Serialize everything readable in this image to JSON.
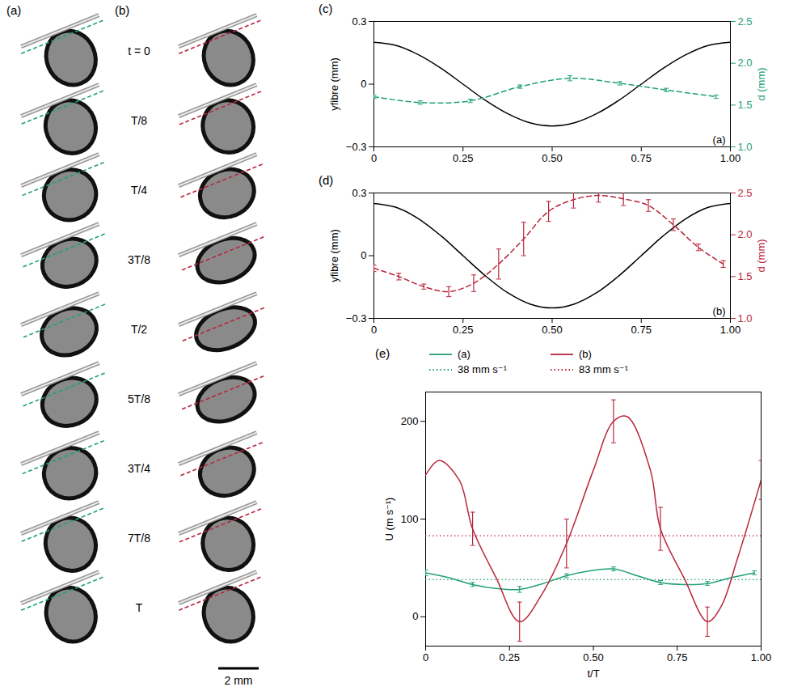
{
  "image_panels": {
    "labels": [
      "(a)",
      "(b)"
    ],
    "times": [
      "t = 0",
      "T/8",
      "T/4",
      "3T/8",
      "T/2",
      "5T/8",
      "3T/4",
      "7T/8",
      "T"
    ],
    "scale_bar": "2 mm"
  },
  "chart_data": [
    {
      "type": "line",
      "panel": "(c)",
      "annotations": [
        "(a)"
      ],
      "xlim": [
        0,
        1
      ],
      "xticks": [
        0,
        0.25,
        {
          "value": 0.5,
          "label": "0.50"
        },
        {
          "value": 0.75,
          "label": "0.75"
        },
        {
          "value": 1,
          "label": "1.00"
        }
      ],
      "ylim": [
        -0.3,
        0.3
      ],
      "yticks": [
        {
          "value": -0.3,
          "label": "−0.3"
        },
        0,
        0.3
      ],
      "ylabel": "yfibre (mm)",
      "y2lim": [
        1,
        2.5
      ],
      "y2ticks": [
        {
          "value": 1,
          "label": "1.0"
        },
        {
          "value": 1.5,
          "label": "1.5"
        },
        {
          "value": 2,
          "label": "2.0"
        },
        {
          "value": 2.5,
          "label": "2.5"
        }
      ],
      "y2label": "d (mm)",
      "series": [
        {
          "color": "#000000",
          "line_style": "solid",
          "x": [
            0,
            0.0625,
            0.125,
            0.1875,
            0.25,
            0.3125,
            0.375,
            0.4375,
            0.5,
            0.5625,
            0.625,
            0.6875,
            0.75,
            0.8125,
            0.875,
            0.9375,
            1
          ],
          "values": [
            0.2,
            0.185,
            0.141,
            0.077,
            0,
            -0.077,
            -0.141,
            -0.185,
            -0.2,
            -0.185,
            -0.141,
            -0.077,
            0,
            0.077,
            0.141,
            0.185,
            0.2
          ]
        },
        {
          "axis": "y2",
          "color": "#22a07a",
          "line_style": "dashed",
          "x": [
            0,
            0.13,
            0.27,
            0.41,
            0.55,
            0.69,
            0.82,
            0.96
          ],
          "values": [
            1.6,
            1.53,
            1.55,
            1.72,
            1.82,
            1.76,
            1.68,
            1.6
          ],
          "error": [
            0.02,
            0.02,
            0.02,
            0.02,
            0.03,
            0.02,
            0.02,
            0.02
          ]
        }
      ]
    },
    {
      "type": "line",
      "panel": "(d)",
      "annotations": [
        "(b)"
      ],
      "xlim": [
        0,
        1
      ],
      "xticks": [
        0,
        0.25,
        {
          "value": 0.5,
          "label": "0.50"
        },
        {
          "value": 0.75,
          "label": "0.75"
        },
        {
          "value": 1,
          "label": "1.00"
        }
      ],
      "ylim": [
        -0.3,
        0.3
      ],
      "yticks": [
        {
          "value": -0.3,
          "label": "−0.3"
        },
        0,
        0.3
      ],
      "ylabel": "yfibre (mm)",
      "y2lim": [
        1,
        2.5
      ],
      "y2ticks": [
        {
          "value": 1,
          "label": "1.0"
        },
        {
          "value": 1.5,
          "label": "1.5"
        },
        {
          "value": 2,
          "label": "2.0"
        },
        {
          "value": 2.5,
          "label": "2.5"
        }
      ],
      "y2label": "d (mm)",
      "series": [
        {
          "color": "#000000",
          "line_style": "solid",
          "x": [
            0,
            0.0625,
            0.125,
            0.1875,
            0.25,
            0.3125,
            0.375,
            0.4375,
            0.5,
            0.5625,
            0.625,
            0.6875,
            0.75,
            0.8125,
            0.875,
            0.9375,
            1
          ],
          "values": [
            0.25,
            0.231,
            0.177,
            0.096,
            0,
            -0.096,
            -0.177,
            -0.231,
            -0.25,
            -0.231,
            -0.177,
            -0.096,
            0,
            0.096,
            0.177,
            0.231,
            0.25
          ]
        },
        {
          "axis": "y2",
          "color": "#b8263c",
          "line_style": "dashed",
          "x": [
            0,
            0.07,
            0.14,
            0.21,
            0.28,
            0.35,
            0.42,
            0.49,
            0.56,
            0.63,
            0.7,
            0.77,
            0.84,
            0.91,
            0.98
          ],
          "values": [
            1.6,
            1.5,
            1.38,
            1.32,
            1.42,
            1.65,
            1.95,
            2.28,
            2.42,
            2.47,
            2.43,
            2.35,
            2.12,
            1.85,
            1.65
          ],
          "error": [
            0.04,
            0.04,
            0.03,
            0.06,
            0.1,
            0.18,
            0.2,
            0.12,
            0.1,
            0.08,
            0.08,
            0.07,
            0.07,
            0.04,
            0.04
          ]
        }
      ]
    },
    {
      "type": "line",
      "panel": "(e)",
      "legend": "top",
      "xlabel": "t/T",
      "ylabel": "U (m s⁻¹)",
      "xlim": [
        0,
        1
      ],
      "xticks": [
        0,
        0.25,
        {
          "value": 0.5,
          "label": "0.50"
        },
        {
          "value": 0.75,
          "label": "0.75"
        },
        {
          "value": 1,
          "label": "1.00"
        }
      ],
      "ylim": [
        -30,
        230
      ],
      "yticks": [
        0,
        100,
        200
      ],
      "series": [
        {
          "name": "(a)",
          "color": "#22a07a",
          "line_style": "solid",
          "x": [
            0,
            0.07,
            0.14,
            0.21,
            0.28,
            0.35,
            0.42,
            0.49,
            0.56,
            0.63,
            0.7,
            0.77,
            0.84,
            0.91,
            0.98
          ],
          "values": [
            45,
            40,
            33,
            29,
            28,
            34,
            42,
            47,
            49,
            42,
            35,
            33,
            34,
            40,
            45
          ],
          "error": [
            3,
            null,
            2,
            null,
            3,
            null,
            2,
            null,
            2,
            null,
            2,
            null,
            2,
            null,
            2
          ]
        },
        {
          "name": "(b)",
          "color": "#b8263c",
          "line_style": "solid",
          "x": [
            0,
            0.04,
            0.1,
            0.14,
            0.21,
            0.28,
            0.35,
            0.42,
            0.5,
            0.56,
            0.6,
            0.67,
            0.7,
            0.77,
            0.84,
            0.88,
            0.93,
            1
          ],
          "values": [
            145,
            160,
            140,
            90,
            40,
            -5,
            25,
            75,
            150,
            200,
            205,
            150,
            90,
            40,
            -5,
            10,
            60,
            140
          ],
          "error": [
            null,
            null,
            null,
            17,
            null,
            20,
            null,
            25,
            null,
            22,
            null,
            null,
            22,
            null,
            15,
            null,
            null,
            20
          ]
        }
      ],
      "reference_lines": [
        {
          "name": "38 mm s⁻¹",
          "value": 38,
          "color": "#22a07a",
          "line_style": "dotted"
        },
        {
          "name": "83 mm s⁻¹",
          "value": 83,
          "color": "#b8263c",
          "line_style": "dotted"
        }
      ]
    }
  ]
}
